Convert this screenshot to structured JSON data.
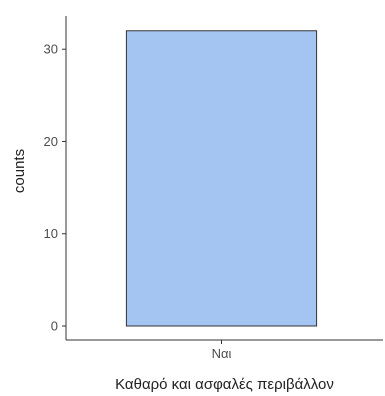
{
  "chart_data": {
    "type": "bar",
    "categories": [
      "Ναι"
    ],
    "values": [
      32
    ],
    "xlabel": "Καθαρό και ασφαλές περιβάλλον",
    "ylabel": "counts",
    "ylim": [
      0,
      33.6
    ],
    "yticks": [
      0,
      10,
      20,
      30
    ],
    "grid": false,
    "legend": "none",
    "colors": {
      "bar_fill": "#a4c4f2",
      "bar_stroke": "#333333",
      "axis": "#333333",
      "tick_text": "#4d4d4d"
    }
  }
}
